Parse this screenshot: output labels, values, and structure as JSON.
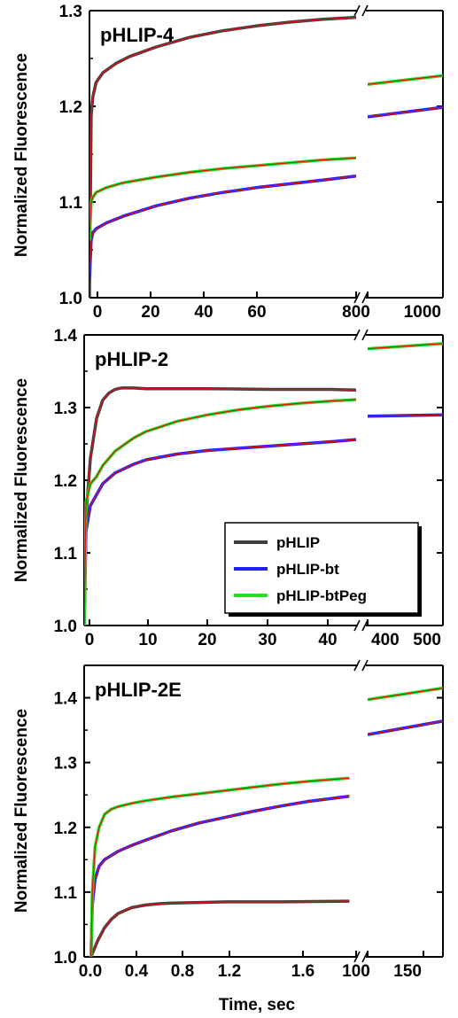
{
  "chart_data": [
    {
      "type": "line",
      "title": "pHLIP-4",
      "ylabel": "Normalized Fluorescence",
      "xlabel": "",
      "ylim": [
        1.0,
        1.3
      ],
      "yticks": [
        "1.0",
        "1.1",
        "1.2",
        "1.3"
      ],
      "xticks_left": [
        "0",
        "20",
        "40",
        "60",
        "800"
      ],
      "xticks_right": [
        "800",
        "1000"
      ],
      "x_break": {
        "left_range": [
          0,
          80
        ],
        "right_range": [
          800,
          1000
        ]
      },
      "series": [
        {
          "color": "#404040",
          "left": {
            "x": [
              0,
              0.5,
              1,
              2,
              4,
              8,
              12,
              20,
              30,
              40,
              50,
              60,
              70,
              80
            ],
            "y": [
              1.0,
              1.19,
              1.21,
              1.225,
              1.235,
              1.245,
              1.252,
              1.262,
              1.272,
              1.279,
              1.284,
              1.288,
              1.291,
              1.293
            ]
          },
          "right": {
            "x": [
              800,
              1000
            ],
            "y": [
              1.301,
              1.301
            ]
          }
        },
        {
          "color": "#2020ff",
          "left": {
            "x": [
              0,
              0.5,
              1,
              2,
              5,
              10,
              20,
              30,
              40,
              50,
              60,
              70,
              80
            ],
            "y": [
              1.02,
              1.06,
              1.068,
              1.072,
              1.078,
              1.085,
              1.096,
              1.104,
              1.11,
              1.115,
              1.119,
              1.123,
              1.127
            ]
          },
          "right": {
            "x": [
              800,
              1000
            ],
            "y": [
              1.189,
              1.199
            ]
          }
        },
        {
          "color": "#20e020",
          "left": {
            "x": [
              0,
              0.5,
              1,
              2,
              5,
              10,
              20,
              30,
              40,
              50,
              60,
              70,
              80
            ],
            "y": [
              1.06,
              1.1,
              1.105,
              1.11,
              1.115,
              1.12,
              1.126,
              1.131,
              1.135,
              1.138,
              1.141,
              1.144,
              1.146
            ]
          },
          "right": {
            "x": [
              800,
              1000
            ],
            "y": [
              1.223,
              1.232
            ]
          }
        }
      ]
    },
    {
      "type": "line",
      "title": "pHLIP-2",
      "ylabel": "Normalized Fluorescence",
      "xlabel": "",
      "ylim": [
        1.0,
        1.4
      ],
      "yticks": [
        "1.0",
        "1.1",
        "1.2",
        "1.3",
        "1.4"
      ],
      "xticks_left": [
        "0",
        "10",
        "20",
        "30",
        "40"
      ],
      "xticks_right": [
        "400",
        "500"
      ],
      "x_break": {
        "left_range": [
          0,
          44
        ],
        "right_range": [
          400,
          500
        ]
      },
      "series": [
        {
          "color": "#404040",
          "left": {
            "x": [
              0,
              0.3,
              1,
              2,
              3,
              4,
              5,
              6,
              8,
              10,
              20,
              30,
              40,
              44
            ],
            "y": [
              1.0,
              1.15,
              1.23,
              1.285,
              1.31,
              1.32,
              1.325,
              1.327,
              1.327,
              1.326,
              1.326,
              1.325,
              1.325,
              1.324
            ]
          },
          "right": null
        },
        {
          "color": "#2020ff",
          "left": {
            "x": [
              0,
              0.3,
              1,
              2,
              3,
              5,
              8,
              10,
              15,
              20,
              30,
              40,
              44
            ],
            "y": [
              1.0,
              1.13,
              1.165,
              1.18,
              1.195,
              1.21,
              1.222,
              1.228,
              1.236,
              1.241,
              1.247,
              1.253,
              1.256
            ]
          },
          "right": {
            "x": [
              400,
              500
            ],
            "y": [
              1.288,
              1.29
            ]
          }
        },
        {
          "color": "#20e020",
          "left": {
            "x": [
              0,
              0.3,
              1,
              2,
              3,
              5,
              8,
              10,
              15,
              20,
              25,
              30,
              35,
              40,
              44
            ],
            "y": [
              1.0,
              1.17,
              1.195,
              1.205,
              1.22,
              1.24,
              1.258,
              1.267,
              1.281,
              1.29,
              1.297,
              1.302,
              1.306,
              1.309,
              1.311
            ]
          },
          "right": {
            "x": [
              400,
              500
            ],
            "y": [
              1.381,
              1.388
            ]
          }
        }
      ],
      "legend": {
        "placement": "lower-right",
        "entries": [
          {
            "label": "pHLIP",
            "color": "#404040"
          },
          {
            "label": "pHLIP-bt",
            "color": "#2020ff"
          },
          {
            "label": "pHLIP-btPeg",
            "color": "#20e020"
          }
        ]
      }
    },
    {
      "type": "line",
      "title": "pHLIP-2E",
      "ylabel": "Normalized Fluorescence",
      "xlabel": "Time, sec",
      "ylim": [
        1.0,
        1.45
      ],
      "yticks": [
        "1.0",
        "1.1",
        "1.2",
        "1.3",
        "1.4"
      ],
      "xticks_left": [
        "0.0",
        "0.4",
        "0.8",
        "1.2",
        "1.6",
        "100"
      ],
      "xticks_right": [
        "100",
        "150"
      ],
      "x_break": {
        "left_range": [
          -0.05,
          1.95
        ],
        "right_range": [
          100,
          165
        ]
      },
      "series": [
        {
          "color": "#404040",
          "left": {
            "x": [
              0,
              0.02,
              0.05,
              0.1,
              0.15,
              0.2,
              0.3,
              0.4,
              0.5,
              0.6,
              0.8,
              1.0,
              1.4,
              1.9
            ],
            "y": [
              1.0,
              1.01,
              1.025,
              1.045,
              1.058,
              1.067,
              1.076,
              1.08,
              1.082,
              1.083,
              1.084,
              1.085,
              1.085,
              1.086
            ]
          },
          "right": null
        },
        {
          "color": "#2020ff",
          "left": {
            "x": [
              0,
              0.01,
              0.03,
              0.06,
              0.1,
              0.2,
              0.3,
              0.4,
              0.6,
              0.8,
              1.0,
              1.2,
              1.4,
              1.6,
              1.9
            ],
            "y": [
              1.0,
              1.08,
              1.12,
              1.14,
              1.15,
              1.163,
              1.172,
              1.18,
              1.195,
              1.207,
              1.216,
              1.225,
              1.233,
              1.24,
              1.248
            ]
          },
          "right": {
            "x": [
              100,
              165
            ],
            "y": [
              1.343,
              1.364
            ]
          }
        },
        {
          "color": "#20e020",
          "left": {
            "x": [
              0,
              0.01,
              0.03,
              0.06,
              0.1,
              0.15,
              0.2,
              0.3,
              0.4,
              0.6,
              0.8,
              1.0,
              1.2,
              1.4,
              1.6,
              1.9
            ],
            "y": [
              1.0,
              1.1,
              1.17,
              1.2,
              1.22,
              1.228,
              1.232,
              1.237,
              1.241,
              1.247,
              1.252,
              1.257,
              1.262,
              1.267,
              1.271,
              1.276
            ]
          },
          "right": {
            "x": [
              100,
              165
            ],
            "y": [
              1.397,
              1.415
            ]
          }
        }
      ]
    }
  ]
}
